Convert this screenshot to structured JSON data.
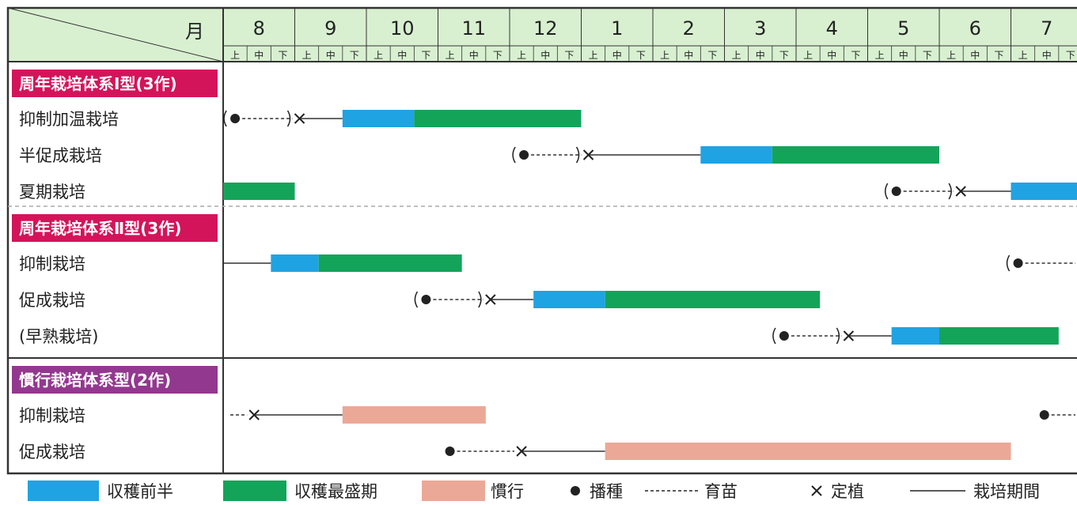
{
  "header": {
    "month_label": "月",
    "months": [
      "8",
      "9",
      "10",
      "11",
      "12",
      "1",
      "2",
      "3",
      "4",
      "5",
      "6",
      "7"
    ],
    "sub_periods": [
      "上",
      "中",
      "下"
    ]
  },
  "groups": [
    {
      "title": "周年栽培体系Ⅰ型(3作)",
      "title_color": "#d4145a",
      "rows": [
        {
          "name": "抑制加温栽培",
          "segments": [
            {
              "kind": "sow",
              "at": 0.5,
              "bracket": true
            },
            {
              "kind": "nursery",
              "from": 0.5,
              "to": 3.2
            },
            {
              "kind": "plant",
              "at": 3.2
            },
            {
              "kind": "period",
              "from": 3.2,
              "to": 5.0
            },
            {
              "kind": "first_half",
              "from": 5.0,
              "to": 8.0
            },
            {
              "kind": "peak",
              "from": 8.0,
              "to": 15.0
            }
          ]
        },
        {
          "name": "半促成栽培",
          "segments": [
            {
              "kind": "sow",
              "at": 12.6,
              "bracket": true
            },
            {
              "kind": "nursery",
              "from": 12.6,
              "to": 15.3
            },
            {
              "kind": "plant",
              "at": 15.3
            },
            {
              "kind": "period",
              "from": 15.3,
              "to": 20.0
            },
            {
              "kind": "first_half",
              "from": 20.0,
              "to": 23.0
            },
            {
              "kind": "peak",
              "from": 23.0,
              "to": 30.0
            }
          ]
        },
        {
          "name": "夏期栽培",
          "segments": [
            {
              "kind": "peak",
              "from": 0.0,
              "to": 3.0
            },
            {
              "kind": "sow",
              "at": 28.2,
              "bracket": true
            },
            {
              "kind": "nursery",
              "from": 28.2,
              "to": 30.9
            },
            {
              "kind": "plant",
              "at": 30.9
            },
            {
              "kind": "period",
              "from": 30.9,
              "to": 33.0
            },
            {
              "kind": "first_half",
              "from": 33.0,
              "to": 36.0
            }
          ]
        }
      ]
    },
    {
      "title": "周年栽培体系Ⅱ型(3作)",
      "title_color": "#d4145a",
      "rows": [
        {
          "name": "抑制栽培",
          "segments": [
            {
              "kind": "period",
              "from": 0.0,
              "to": 2.0
            },
            {
              "kind": "first_half",
              "from": 2.0,
              "to": 4.0
            },
            {
              "kind": "peak",
              "from": 4.0,
              "to": 10.0
            },
            {
              "kind": "sow",
              "at": 33.3,
              "bracket": true
            },
            {
              "kind": "nursery",
              "from": 33.3,
              "to": 36.0
            }
          ]
        },
        {
          "name": "促成栽培",
          "segments": [
            {
              "kind": "sow",
              "at": 8.5,
              "bracket": true
            },
            {
              "kind": "nursery",
              "from": 8.5,
              "to": 11.2
            },
            {
              "kind": "plant",
              "at": 11.2
            },
            {
              "kind": "period",
              "from": 11.2,
              "to": 13.0
            },
            {
              "kind": "first_half",
              "from": 13.0,
              "to": 16.0
            },
            {
              "kind": "peak",
              "from": 16.0,
              "to": 25.0
            }
          ]
        },
        {
          "name": "(早熟栽培)",
          "segments": [
            {
              "kind": "sow",
              "at": 23.5,
              "bracket": true
            },
            {
              "kind": "nursery",
              "from": 23.5,
              "to": 26.2
            },
            {
              "kind": "plant",
              "at": 26.2
            },
            {
              "kind": "period",
              "from": 26.2,
              "to": 28.0
            },
            {
              "kind": "first_half",
              "from": 28.0,
              "to": 30.0
            },
            {
              "kind": "peak",
              "from": 30.0,
              "to": 35.0
            }
          ]
        }
      ]
    },
    {
      "title": "慣行栽培体系型(2作)",
      "title_color": "#93388f",
      "rows": [
        {
          "name": "抑制栽培",
          "segments": [
            {
              "kind": "nursery",
              "from": 0.0,
              "to": 1.3
            },
            {
              "kind": "plant",
              "at": 1.3
            },
            {
              "kind": "period",
              "from": 1.3,
              "to": 5.0
            },
            {
              "kind": "conventional",
              "from": 5.0,
              "to": 11.0
            },
            {
              "kind": "sow",
              "at": 34.4,
              "bracket": false
            },
            {
              "kind": "nursery",
              "from": 34.4,
              "to": 36.0
            }
          ]
        },
        {
          "name": "促成栽培",
          "segments": [
            {
              "kind": "sow",
              "at": 9.5,
              "bracket": false
            },
            {
              "kind": "nursery",
              "from": 9.5,
              "to": 12.5
            },
            {
              "kind": "plant",
              "at": 12.5
            },
            {
              "kind": "period",
              "from": 12.5,
              "to": 16.0
            },
            {
              "kind": "conventional",
              "from": 16.0,
              "to": 33.0
            }
          ]
        }
      ]
    }
  ],
  "legend": [
    {
      "kind": "first_half",
      "label": "収穫前半"
    },
    {
      "kind": "peak",
      "label": "収穫最盛期"
    },
    {
      "kind": "conventional",
      "label": "慣行"
    },
    {
      "kind": "sow",
      "label": "播種"
    },
    {
      "kind": "nursery",
      "label": "育苗"
    },
    {
      "kind": "plant",
      "label": "定植"
    },
    {
      "kind": "period",
      "label": "栽培期間"
    }
  ],
  "colors": {
    "header_bg": "#d8f0d0",
    "first_half": "#1fa3e3",
    "peak": "#13a45a",
    "conventional": "#eca897",
    "line": "#333333",
    "border": "#333333"
  }
}
